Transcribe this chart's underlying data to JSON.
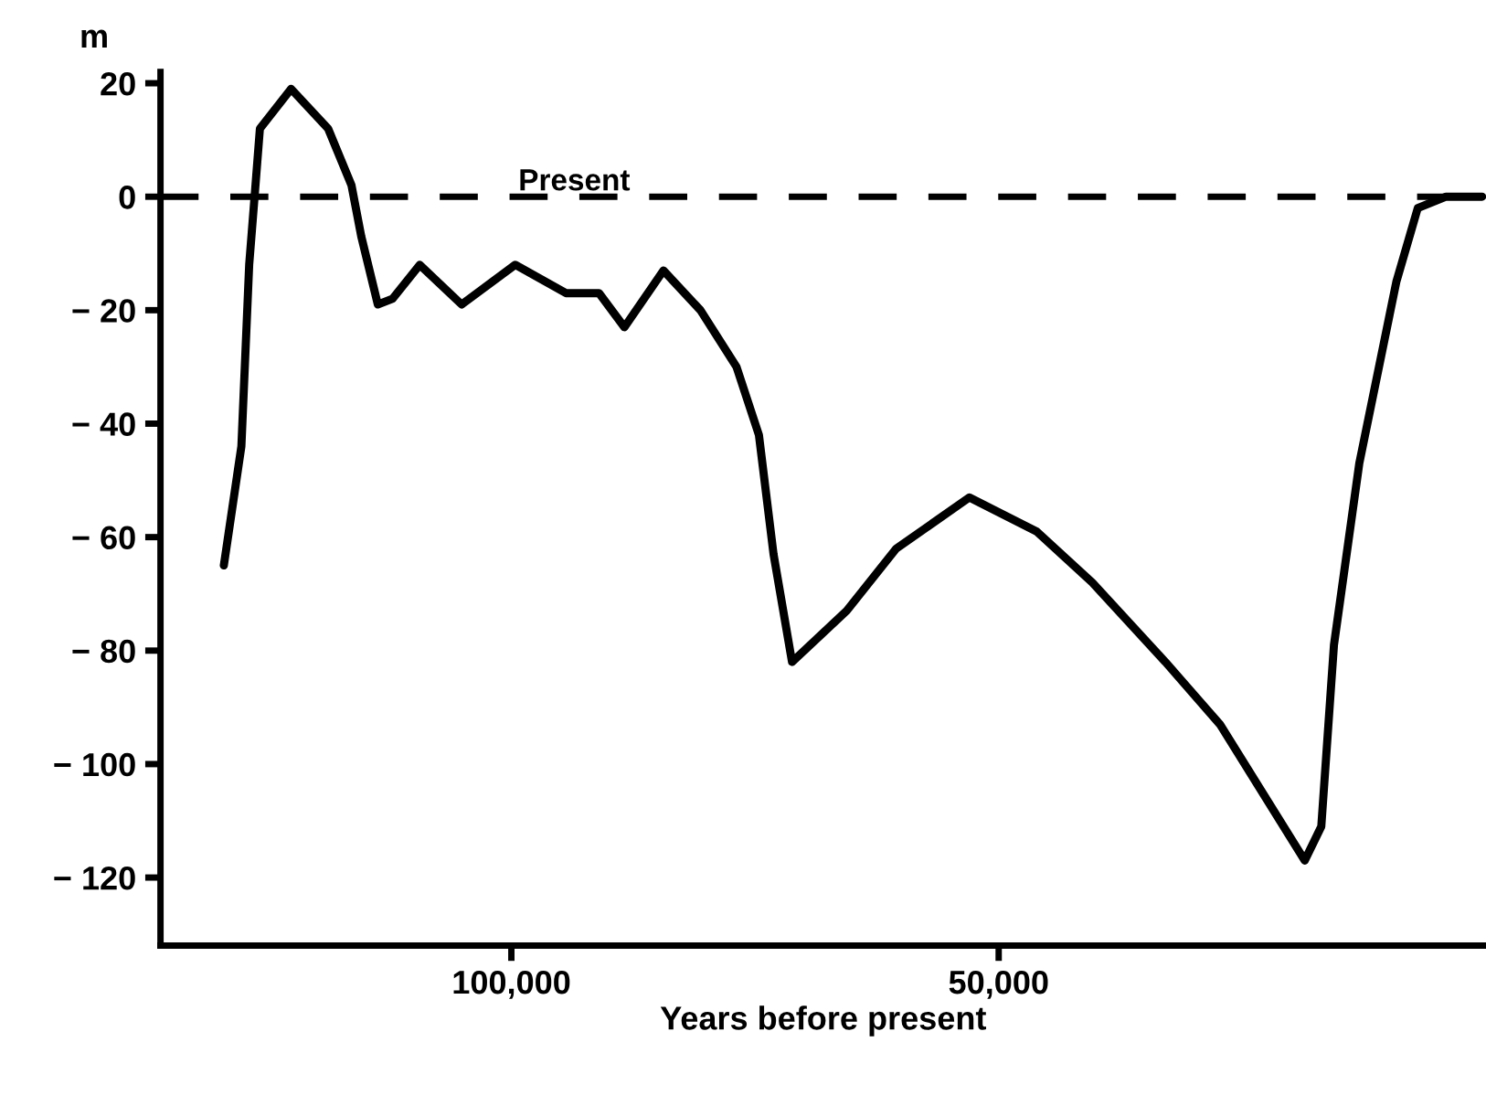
{
  "chart_data": {
    "type": "line",
    "ylabel": "m",
    "xlabel": "Years before present",
    "x": [
      129500,
      127700,
      126900,
      126300,
      125800,
      122600,
      118800,
      116400,
      115400,
      113700,
      112200,
      109400,
      105100,
      99600,
      94400,
      91000,
      88400,
      84400,
      80600,
      76900,
      74600,
      73100,
      71200,
      65600,
      60500,
      53000,
      46100,
      40400,
      32900,
      27300,
      18600,
      16900,
      15600,
      13000,
      9200,
      7000,
      4100,
      400
    ],
    "series": [
      {
        "color": "#000000",
        "values": [
          -65,
          -44,
          -12,
          1,
          12,
          19,
          12,
          2,
          -7,
          -19,
          -18,
          -12,
          -19,
          -12,
          -17,
          -17,
          -23,
          -13,
          -20,
          -30,
          -42,
          -63,
          -82,
          -73,
          -62,
          -53,
          -59,
          -68,
          -82,
          -93,
          -117,
          -111,
          -79,
          -47,
          -15,
          -2,
          0,
          0
        ]
      }
    ],
    "xlim": [
      136000,
      0
    ],
    "ylim": [
      -132,
      22
    ],
    "xticks": [
      {
        "value": 100000,
        "label": "100,000"
      },
      {
        "value": 50000,
        "label": "50,000"
      }
    ],
    "yticks": [
      20,
      0,
      {
        "value": -20,
        "label": "− 20"
      },
      {
        "value": -40,
        "label": "− 40"
      },
      {
        "value": -60,
        "label": "− 60"
      },
      {
        "value": -80,
        "label": "− 80"
      },
      {
        "value": -100,
        "label": "− 100"
      },
      {
        "value": -120,
        "label": "− 120"
      }
    ],
    "ref_lines": [
      {
        "axis": "y",
        "value": 0,
        "label": "Present",
        "color": "#000000",
        "line_style": "dashed"
      }
    ],
    "grid": false,
    "legend": false,
    "marker": "none",
    "line_style": "solid"
  }
}
